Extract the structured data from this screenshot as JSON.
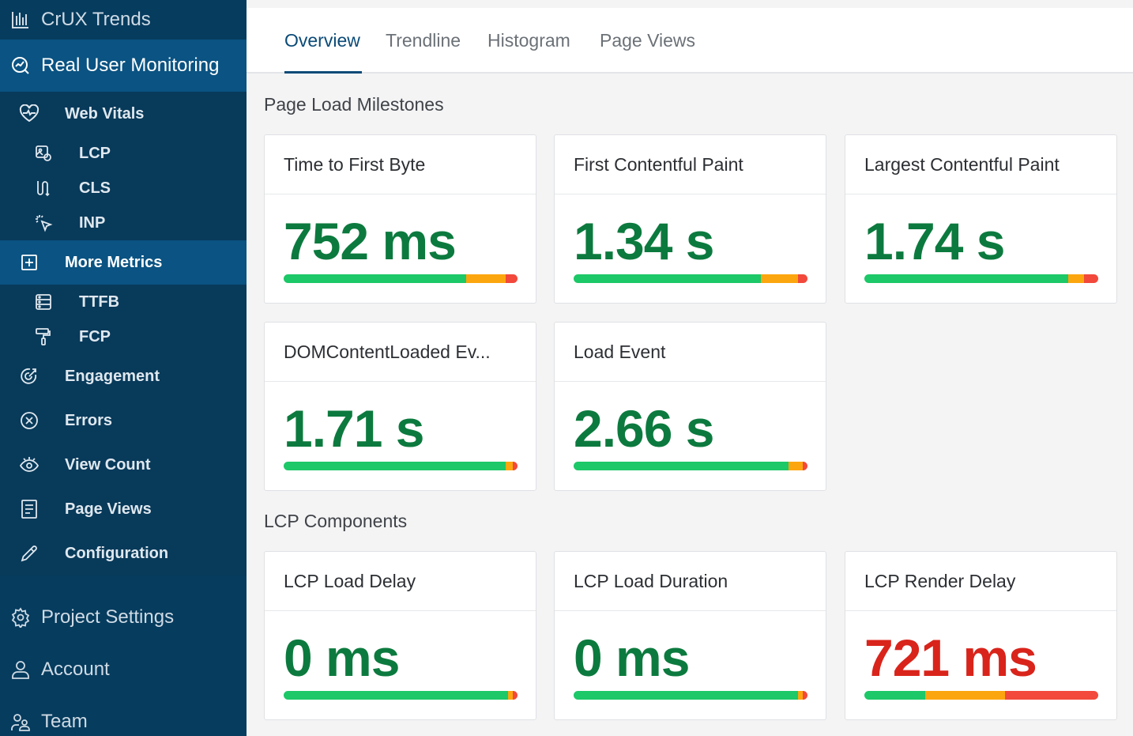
{
  "sidebar": {
    "crux": "CrUX Trends",
    "rum": "Real User Monitoring",
    "web_vitals": "Web Vitals",
    "lcp": "LCP",
    "cls": "CLS",
    "inp": "INP",
    "more_metrics": "More Metrics",
    "ttfb": "TTFB",
    "fcp": "FCP",
    "engagement": "Engagement",
    "errors": "Errors",
    "view_count": "View Count",
    "page_views": "Page Views",
    "configuration": "Configuration",
    "project_settings": "Project Settings",
    "account": "Account",
    "team": "Team"
  },
  "tabs": [
    "Overview",
    "Trendline",
    "Histogram",
    "Page Views"
  ],
  "sections": {
    "milestones": "Page Load Milestones",
    "lcp_components": "LCP Components"
  },
  "cards": [
    {
      "title": "Time to First Byte",
      "value": "752 ms",
      "status": "good",
      "dist": {
        "good": 0.78,
        "ni": 0.17,
        "poor": 0.05
      }
    },
    {
      "title": "First Contentful Paint",
      "value": "1.34 s",
      "status": "good",
      "dist": {
        "good": 0.8,
        "ni": 0.16,
        "poor": 0.04
      }
    },
    {
      "title": "Largest Contentful Paint",
      "value": "1.74 s",
      "status": "good",
      "dist": {
        "good": 0.87,
        "ni": 0.07,
        "poor": 0.06
      }
    },
    {
      "title": "DOMContentLoaded Ev...",
      "value": "1.71 s",
      "status": "good",
      "dist": {
        "good": 0.95,
        "ni": 0.03,
        "poor": 0.02
      }
    },
    {
      "title": "Load Event",
      "value": "2.66 s",
      "status": "good",
      "dist": {
        "good": 0.92,
        "ni": 0.06,
        "poor": 0.02
      }
    },
    {
      "title": "LCP Load Delay",
      "value": "0 ms",
      "status": "good",
      "dist": {
        "good": 0.96,
        "ni": 0.02,
        "poor": 0.02
      }
    },
    {
      "title": "LCP Load Duration",
      "value": "0 ms",
      "status": "good",
      "dist": {
        "good": 0.96,
        "ni": 0.02,
        "poor": 0.02
      }
    },
    {
      "title": "LCP Render Delay",
      "value": "721 ms",
      "status": "poor",
      "dist": {
        "good": 0.26,
        "ni": 0.34,
        "poor": 0.4
      }
    }
  ]
}
